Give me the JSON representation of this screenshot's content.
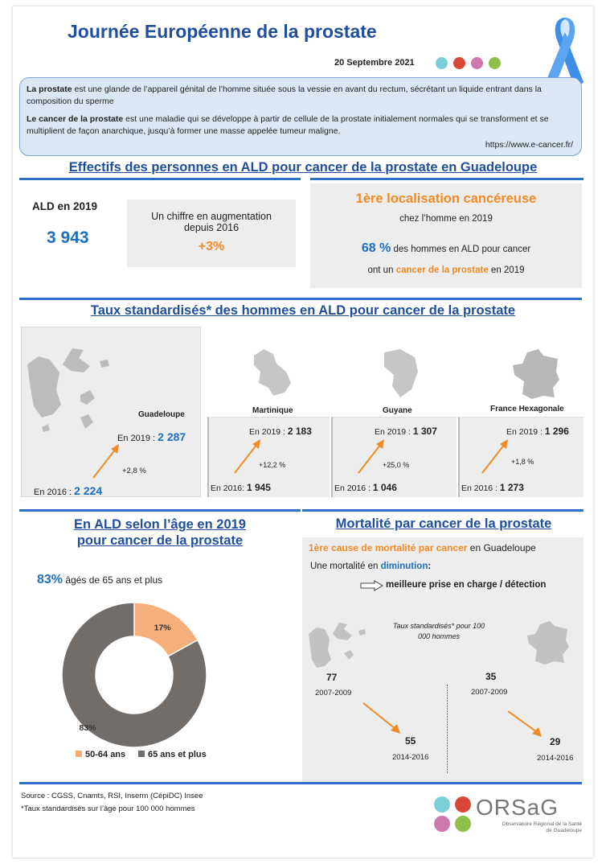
{
  "header": {
    "title": "Journée Européenne de la prostate",
    "date": "20 Septembre 2021"
  },
  "intro": {
    "p1_bold": "La prostate",
    "p1_rest": " est une glande de l’appareil génital de l’homme située sous la vessie en avant du rectum, sécrétant un liquide entrant dans la composition du sperme",
    "p2_bold": "Le cancer de la prostate",
    "p2_rest": " est une maladie qui se développe à partir de cellule de la prostate initialement normales qui se transforment et se multiplient de façon anarchique, jusqu’à former une masse appelée tumeur maligne.",
    "url": "https://www.e-cancer.fr/"
  },
  "effectifs": {
    "title": "Effectifs des personnes en ALD pour cancer de la prostate en Guadeloupe",
    "ald_label": "ALD en 2019",
    "ald_value": "3 943",
    "increase_text": "Un chiffre en augmentation depuis 2016",
    "increase_value": "+3%",
    "loc_title": "1ère localisation cancéreuse",
    "loc_sub": "chez l’homme en 2019",
    "loc_pct": "68 %",
    "loc_text1": " des hommes en ALD pour cancer",
    "loc_text2a": "ont un ",
    "loc_text2b": "cancer de la prostate",
    "loc_text2c": " en 2019"
  },
  "taux": {
    "title": "Taux standardisés* des hommes en ALD pour cancer de la prostate",
    "regions": [
      {
        "name": "Guadeloupe",
        "y2019_label": "En 2019 : ",
        "y2019": "2 287",
        "change": "+2,8 %",
        "y2016_label": "En 2016 : ",
        "y2016": "2 224"
      },
      {
        "name": "Martinique",
        "y2019_label": "En 2019 : ",
        "y2019": "2 183",
        "change": "+12,2 %",
        "y2016_label": "En 2016: ",
        "y2016": "1 945"
      },
      {
        "name": "Guyane",
        "y2019_label": "En 2019 : ",
        "y2019": "1 307",
        "change": "+25,0 %",
        "y2016_label": "En 2016 : ",
        "y2016": "1 046"
      },
      {
        "name": "France Hexagonale",
        "y2019_label": "En 2019 : ",
        "y2019": "1 296",
        "change": "+1,8 %",
        "y2016_label": "En 2016 : ",
        "y2016": "1 273"
      }
    ]
  },
  "age": {
    "title1": "En ALD selon l’âge en 2019",
    "title2": "pour cancer de la prostate",
    "pct": "83%",
    "pct_text": " âgés de 65 ans et plus"
  },
  "mortalite": {
    "title": "Mortalité par cancer de la prostate",
    "cause_orange": "1ère cause de  mortalité par cancer",
    "cause_rest": " en Guadeloupe",
    "trend_text": "Une mortalité en ",
    "trend_word": "diminution",
    "trend_colon": ":",
    "reason": "meilleure prise en charge / détection",
    "note": "Taux standardisés* pour 100 000 hommes",
    "gp_v1": "77",
    "gp_p1": "2007-2009",
    "gp_v2": "55",
    "gp_p2": "2014-2016",
    "fr_v1": "35",
    "fr_p1": "2007-2009",
    "fr_v2": "29",
    "fr_p2": "2014-2016"
  },
  "footer": {
    "source": "Source : CGSS, Cnamts, RSI, Inserm (CépiDC) Insee",
    "note": "*Taux standardisés sur l’âge pour 100 000 hommes",
    "logo_text": "ORSaG",
    "logo_sub1": "Observatoire Régional de la Santé",
    "logo_sub2": "de Guadeloupe"
  },
  "chart_data": {
    "type": "pie",
    "categories": [
      "50-64 ans",
      "65 ans et plus"
    ],
    "values": [
      17,
      83
    ],
    "labels": [
      "17%",
      "83%"
    ],
    "colors": [
      "#f6ae7a",
      "#736d6a"
    ],
    "donut": true,
    "legend": "bottom"
  }
}
